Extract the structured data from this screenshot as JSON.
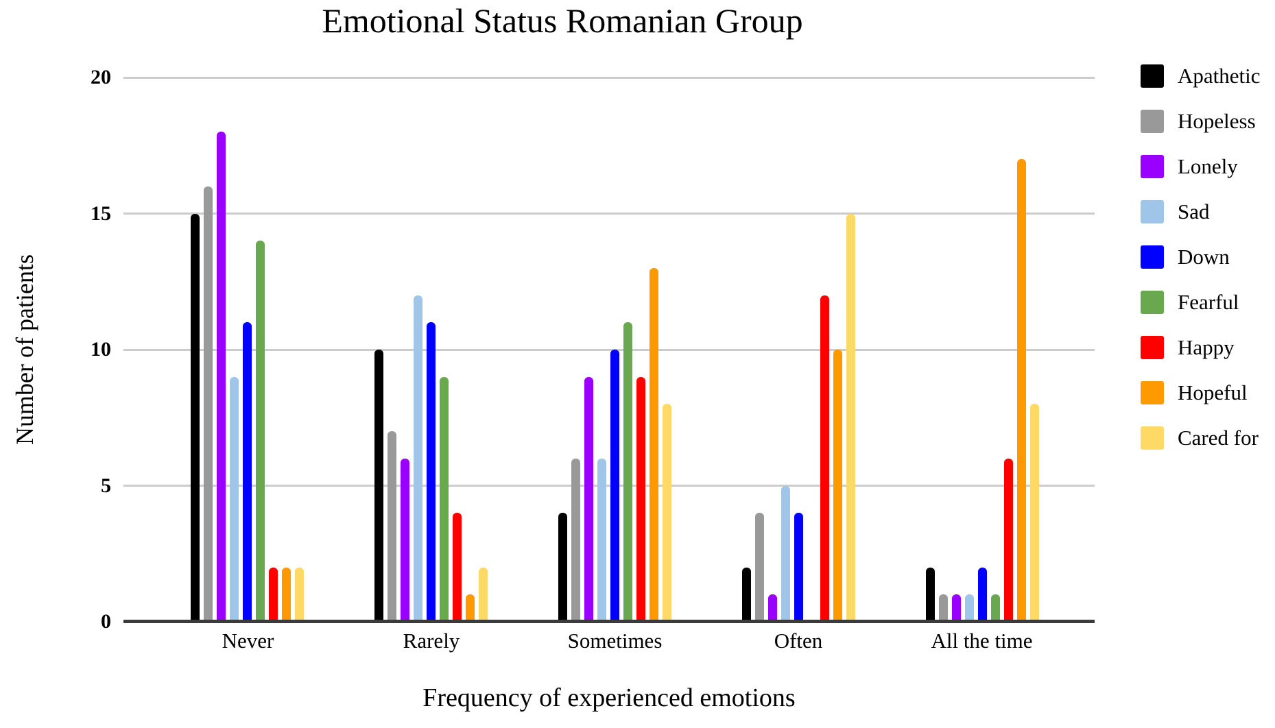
{
  "chart_data": {
    "type": "bar",
    "title": "Emotional Status Romanian Group",
    "xlabel": "Frequency of experienced emotions",
    "ylabel": "Number of patients",
    "categories": [
      "Never",
      "Rarely",
      "Sometimes",
      "Often",
      "All the time"
    ],
    "series": [
      {
        "name": "Apathetic",
        "color": "#000000",
        "values": [
          15,
          10,
          4,
          2,
          2
        ]
      },
      {
        "name": "Hopeless",
        "color": "#999999",
        "values": [
          16,
          7,
          6,
          4,
          1
        ]
      },
      {
        "name": "Lonely",
        "color": "#9900ff",
        "values": [
          18,
          6,
          9,
          1,
          1
        ]
      },
      {
        "name": "Sad",
        "color": "#9fc5e8",
        "values": [
          9,
          12,
          6,
          5,
          1
        ]
      },
      {
        "name": "Down",
        "color": "#0000ff",
        "values": [
          11,
          11,
          10,
          4,
          2
        ]
      },
      {
        "name": "Fearful",
        "color": "#6aa84f",
        "values": [
          14,
          9,
          11,
          0,
          1
        ]
      },
      {
        "name": "Happy",
        "color": "#ff0000",
        "values": [
          2,
          4,
          9,
          12,
          6
        ]
      },
      {
        "name": "Hopeful",
        "color": "#ff9900",
        "values": [
          2,
          1,
          13,
          10,
          17
        ]
      },
      {
        "name": "Cared for",
        "color": "#ffd966",
        "values": [
          2,
          2,
          8,
          15,
          8
        ]
      }
    ],
    "ylim": [
      0,
      20
    ],
    "yticks": [
      0,
      5,
      10,
      15,
      20
    ],
    "grid": true,
    "legend_position": "right",
    "style": {
      "background": "#ffffff",
      "gridline_color": "#cccccc",
      "axis_color": "#3a3a3a",
      "text_color": "#000000"
    }
  }
}
